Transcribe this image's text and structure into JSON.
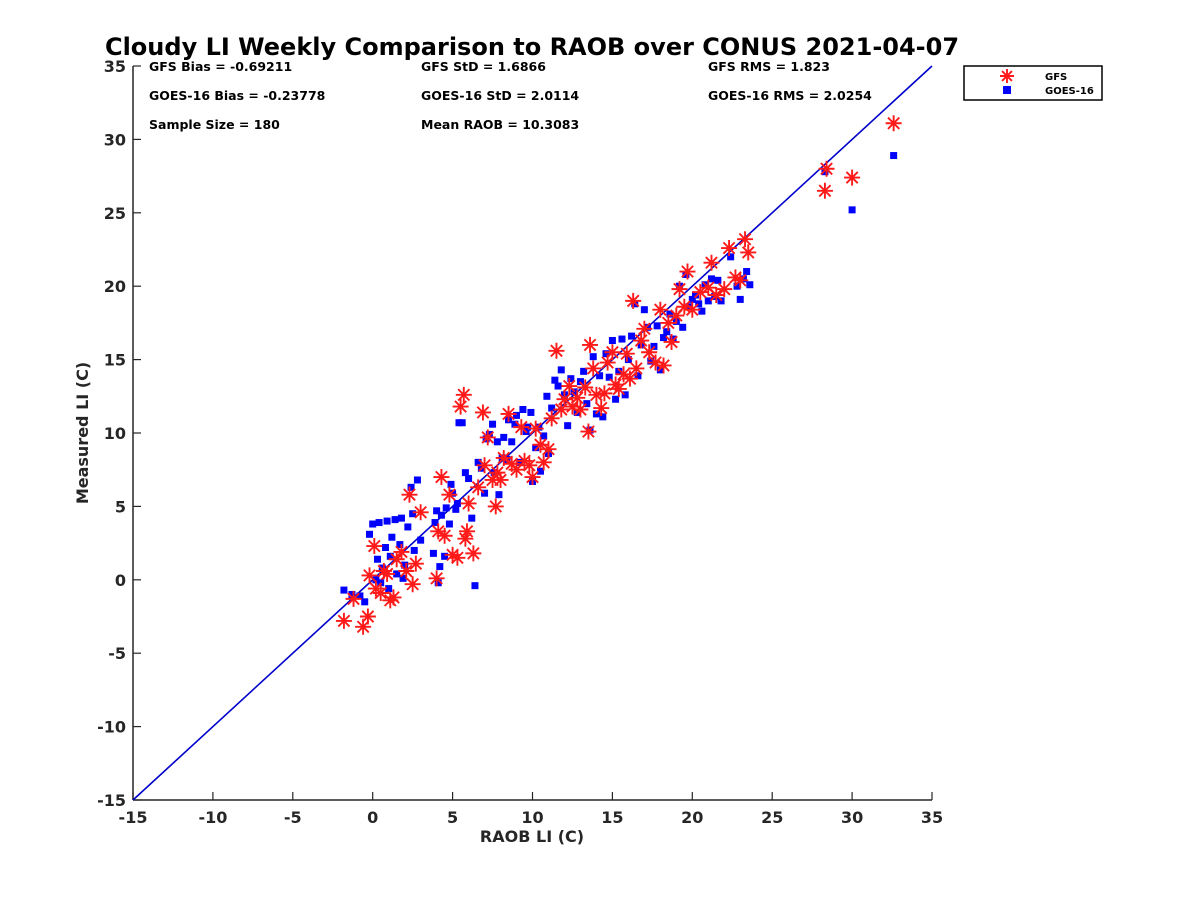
{
  "chart_data": {
    "type": "scatter",
    "title": "Cloudy LI Weekly Comparison to RAOB over CONUS 2021-04-07",
    "xlabel": "RAOB LI (C)",
    "ylabel": "Measured LI (C)",
    "xlim": [
      -15,
      35
    ],
    "ylim": [
      -15,
      35
    ],
    "xticks": [
      "-15",
      "-10",
      "-5",
      "0",
      "5",
      "10",
      "15",
      "20",
      "25",
      "30",
      "35"
    ],
    "yticks": [
      "-15",
      "-10",
      "-5",
      "0",
      "5",
      "10",
      "15",
      "20",
      "25",
      "30",
      "35"
    ],
    "legend_position": "outside top-right",
    "reference_line": {
      "x": [
        -15,
        35
      ],
      "y": [
        -15,
        35
      ],
      "color": "#0000cc"
    },
    "stats": [
      "GFS Bias = -0.69211",
      "GFS StD = 1.6866",
      "GFS RMS = 1.823",
      "GOES-16 Bias = -0.23778",
      "GOES-16 StD = 2.0114",
      "GOES-16 RMS = 2.0254",
      "Sample Size = 180",
      "Mean RAOB = 10.3083"
    ],
    "series": [
      {
        "name": "GFS",
        "marker": "asterisk",
        "color": "#ff1a1a",
        "points": [
          [
            -1.8,
            -2.8
          ],
          [
            -1.2,
            -1.3
          ],
          [
            -0.6,
            -3.2
          ],
          [
            -0.3,
            -2.5
          ],
          [
            -0.2,
            0.3
          ],
          [
            0.1,
            2.3
          ],
          [
            0.2,
            -0.6
          ],
          [
            0.5,
            -0.9
          ],
          [
            0.7,
            0.6
          ],
          [
            0.9,
            0.4
          ],
          [
            1.1,
            -1.4
          ],
          [
            1.3,
            -1.2
          ],
          [
            1.5,
            1.4
          ],
          [
            1.8,
            1.9
          ],
          [
            2.1,
            0.6
          ],
          [
            2.3,
            5.8
          ],
          [
            2.5,
            -0.3
          ],
          [
            2.7,
            1.1
          ],
          [
            3.0,
            4.6
          ],
          [
            4.0,
            0.1
          ],
          [
            4.1,
            3.3
          ],
          [
            4.3,
            7.0
          ],
          [
            4.5,
            3.0
          ],
          [
            4.8,
            5.8
          ],
          [
            5.0,
            1.7
          ],
          [
            5.3,
            1.5
          ],
          [
            5.5,
            11.8
          ],
          [
            5.7,
            12.6
          ],
          [
            5.8,
            2.8
          ],
          [
            5.9,
            3.3
          ],
          [
            6.0,
            5.2
          ],
          [
            6.3,
            1.8
          ],
          [
            6.6,
            6.3
          ],
          [
            6.9,
            11.4
          ],
          [
            7.0,
            7.8
          ],
          [
            7.2,
            9.7
          ],
          [
            7.5,
            6.8
          ],
          [
            7.7,
            5.0
          ],
          [
            7.8,
            7.3
          ],
          [
            8.0,
            6.8
          ],
          [
            8.2,
            8.3
          ],
          [
            8.5,
            11.3
          ],
          [
            8.7,
            7.9
          ],
          [
            9.0,
            7.5
          ],
          [
            9.3,
            10.4
          ],
          [
            9.5,
            8.1
          ],
          [
            9.8,
            7.8
          ],
          [
            10.0,
            7.0
          ],
          [
            10.2,
            10.3
          ],
          [
            10.5,
            9.2
          ],
          [
            10.7,
            8.0
          ],
          [
            11.0,
            8.9
          ],
          [
            11.2,
            11.0
          ],
          [
            11.5,
            15.6
          ],
          [
            11.8,
            11.6
          ],
          [
            12.0,
            12.3
          ],
          [
            12.3,
            13.2
          ],
          [
            12.5,
            11.8
          ],
          [
            12.8,
            12.4
          ],
          [
            13.0,
            11.6
          ],
          [
            13.3,
            13.1
          ],
          [
            13.5,
            10.1
          ],
          [
            13.6,
            16.0
          ],
          [
            13.8,
            14.4
          ],
          [
            14.0,
            12.6
          ],
          [
            14.3,
            11.7
          ],
          [
            14.5,
            12.7
          ],
          [
            14.7,
            14.8
          ],
          [
            15.0,
            15.5
          ],
          [
            15.2,
            13.3
          ],
          [
            15.4,
            13.0
          ],
          [
            15.7,
            14.0
          ],
          [
            15.9,
            15.4
          ],
          [
            16.1,
            13.7
          ],
          [
            16.3,
            19.0
          ],
          [
            16.5,
            14.4
          ],
          [
            16.8,
            16.3
          ],
          [
            17.0,
            17.1
          ],
          [
            17.3,
            15.5
          ],
          [
            17.7,
            14.8
          ],
          [
            18.0,
            18.4
          ],
          [
            18.2,
            14.6
          ],
          [
            18.5,
            17.5
          ],
          [
            18.7,
            16.2
          ],
          [
            19.0,
            18.0
          ],
          [
            19.2,
            19.8
          ],
          [
            19.5,
            18.6
          ],
          [
            19.7,
            21.0
          ],
          [
            20.0,
            18.4
          ],
          [
            20.5,
            19.6
          ],
          [
            21.0,
            19.9
          ],
          [
            21.2,
            21.6
          ],
          [
            21.5,
            19.4
          ],
          [
            22.0,
            19.8
          ],
          [
            22.3,
            22.6
          ],
          [
            22.7,
            20.6
          ],
          [
            23.0,
            20.4
          ],
          [
            23.3,
            23.2
          ],
          [
            23.5,
            22.3
          ],
          [
            28.3,
            26.5
          ],
          [
            28.4,
            28.0
          ],
          [
            30.0,
            27.4
          ],
          [
            32.6,
            31.1
          ]
        ]
      },
      {
        "name": "GOES-16",
        "marker": "square",
        "color": "#0000ff",
        "points": [
          [
            -1.8,
            -0.7
          ],
          [
            -1.3,
            -1.0
          ],
          [
            -0.8,
            -1.1
          ],
          [
            -0.5,
            -1.5
          ],
          [
            -0.2,
            3.1
          ],
          [
            0.0,
            3.8
          ],
          [
            0.2,
            0.0
          ],
          [
            0.3,
            1.4
          ],
          [
            0.4,
            3.9
          ],
          [
            0.5,
            -0.2
          ],
          [
            0.6,
            0.8
          ],
          [
            0.8,
            2.2
          ],
          [
            0.9,
            4.0
          ],
          [
            1.0,
            -0.6
          ],
          [
            1.1,
            1.6
          ],
          [
            1.2,
            2.9
          ],
          [
            1.4,
            4.1
          ],
          [
            1.5,
            0.4
          ],
          [
            1.7,
            2.4
          ],
          [
            1.8,
            4.2
          ],
          [
            1.9,
            0.1
          ],
          [
            2.0,
            1.0
          ],
          [
            2.2,
            3.6
          ],
          [
            2.4,
            6.3
          ],
          [
            2.5,
            4.5
          ],
          [
            2.6,
            2.0
          ],
          [
            2.8,
            6.8
          ],
          [
            3.0,
            2.7
          ],
          [
            3.8,
            1.8
          ],
          [
            3.9,
            3.9
          ],
          [
            4.0,
            4.7
          ],
          [
            4.1,
            -0.2
          ],
          [
            4.2,
            0.9
          ],
          [
            4.3,
            4.4
          ],
          [
            4.5,
            1.6
          ],
          [
            4.6,
            4.9
          ],
          [
            4.8,
            3.8
          ],
          [
            4.9,
            6.5
          ],
          [
            5.0,
            5.9
          ],
          [
            5.2,
            4.8
          ],
          [
            5.3,
            5.2
          ],
          [
            5.4,
            10.7
          ],
          [
            5.6,
            10.7
          ],
          [
            5.8,
            7.3
          ],
          [
            6.0,
            6.9
          ],
          [
            6.2,
            4.2
          ],
          [
            6.4,
            -0.4
          ],
          [
            6.6,
            8.0
          ],
          [
            6.8,
            7.6
          ],
          [
            7.0,
            5.9
          ],
          [
            7.1,
            9.6
          ],
          [
            7.3,
            9.9
          ],
          [
            7.5,
            10.6
          ],
          [
            7.6,
            7.3
          ],
          [
            7.8,
            9.4
          ],
          [
            7.9,
            5.8
          ],
          [
            8.1,
            8.3
          ],
          [
            8.2,
            9.7
          ],
          [
            8.4,
            8.2
          ],
          [
            8.5,
            10.9
          ],
          [
            8.7,
            9.4
          ],
          [
            8.9,
            10.6
          ],
          [
            9.0,
            11.2
          ],
          [
            9.2,
            8.0
          ],
          [
            9.4,
            11.6
          ],
          [
            9.6,
            10.1
          ],
          [
            9.7,
            10.4
          ],
          [
            9.9,
            11.4
          ],
          [
            10.0,
            6.7
          ],
          [
            10.2,
            9.0
          ],
          [
            10.4,
            10.4
          ],
          [
            10.5,
            7.4
          ],
          [
            10.7,
            9.8
          ],
          [
            10.9,
            12.5
          ],
          [
            11.0,
            8.6
          ],
          [
            11.2,
            11.7
          ],
          [
            11.4,
            13.6
          ],
          [
            11.6,
            13.2
          ],
          [
            11.8,
            14.3
          ],
          [
            12.0,
            12.6
          ],
          [
            12.2,
            10.5
          ],
          [
            12.4,
            13.7
          ],
          [
            12.6,
            12.8
          ],
          [
            12.8,
            11.4
          ],
          [
            13.0,
            13.5
          ],
          [
            13.2,
            14.2
          ],
          [
            13.4,
            12.0
          ],
          [
            13.6,
            10.2
          ],
          [
            13.8,
            15.2
          ],
          [
            14.0,
            11.3
          ],
          [
            14.2,
            13.9
          ],
          [
            14.4,
            11.1
          ],
          [
            14.6,
            15.4
          ],
          [
            14.8,
            13.8
          ],
          [
            15.0,
            16.3
          ],
          [
            15.2,
            12.3
          ],
          [
            15.4,
            14.2
          ],
          [
            15.6,
            16.4
          ],
          [
            15.8,
            12.6
          ],
          [
            16.0,
            15.0
          ],
          [
            16.2,
            16.6
          ],
          [
            16.4,
            18.8
          ],
          [
            16.6,
            13.9
          ],
          [
            16.8,
            16.0
          ],
          [
            17.0,
            18.4
          ],
          [
            17.2,
            17.2
          ],
          [
            17.4,
            14.9
          ],
          [
            17.6,
            15.9
          ],
          [
            17.8,
            17.3
          ],
          [
            18.0,
            14.3
          ],
          [
            18.2,
            16.5
          ],
          [
            18.4,
            16.9
          ],
          [
            18.6,
            18.1
          ],
          [
            18.8,
            16.4
          ],
          [
            19.0,
            17.6
          ],
          [
            19.2,
            20.0
          ],
          [
            19.4,
            17.2
          ],
          [
            19.6,
            20.8
          ],
          [
            19.8,
            18.6
          ],
          [
            20.0,
            19.1
          ],
          [
            20.2,
            19.4
          ],
          [
            20.4,
            18.8
          ],
          [
            20.6,
            18.3
          ],
          [
            20.8,
            20.1
          ],
          [
            21.0,
            19.0
          ],
          [
            21.2,
            20.5
          ],
          [
            21.4,
            19.3
          ],
          [
            21.6,
            20.4
          ],
          [
            21.8,
            19.0
          ],
          [
            22.4,
            22.0
          ],
          [
            22.8,
            20.0
          ],
          [
            23.0,
            19.1
          ],
          [
            23.2,
            20.5
          ],
          [
            23.4,
            21.0
          ],
          [
            23.6,
            20.1
          ],
          [
            28.3,
            27.8
          ],
          [
            30.0,
            25.2
          ],
          [
            32.6,
            28.9
          ]
        ]
      }
    ]
  }
}
